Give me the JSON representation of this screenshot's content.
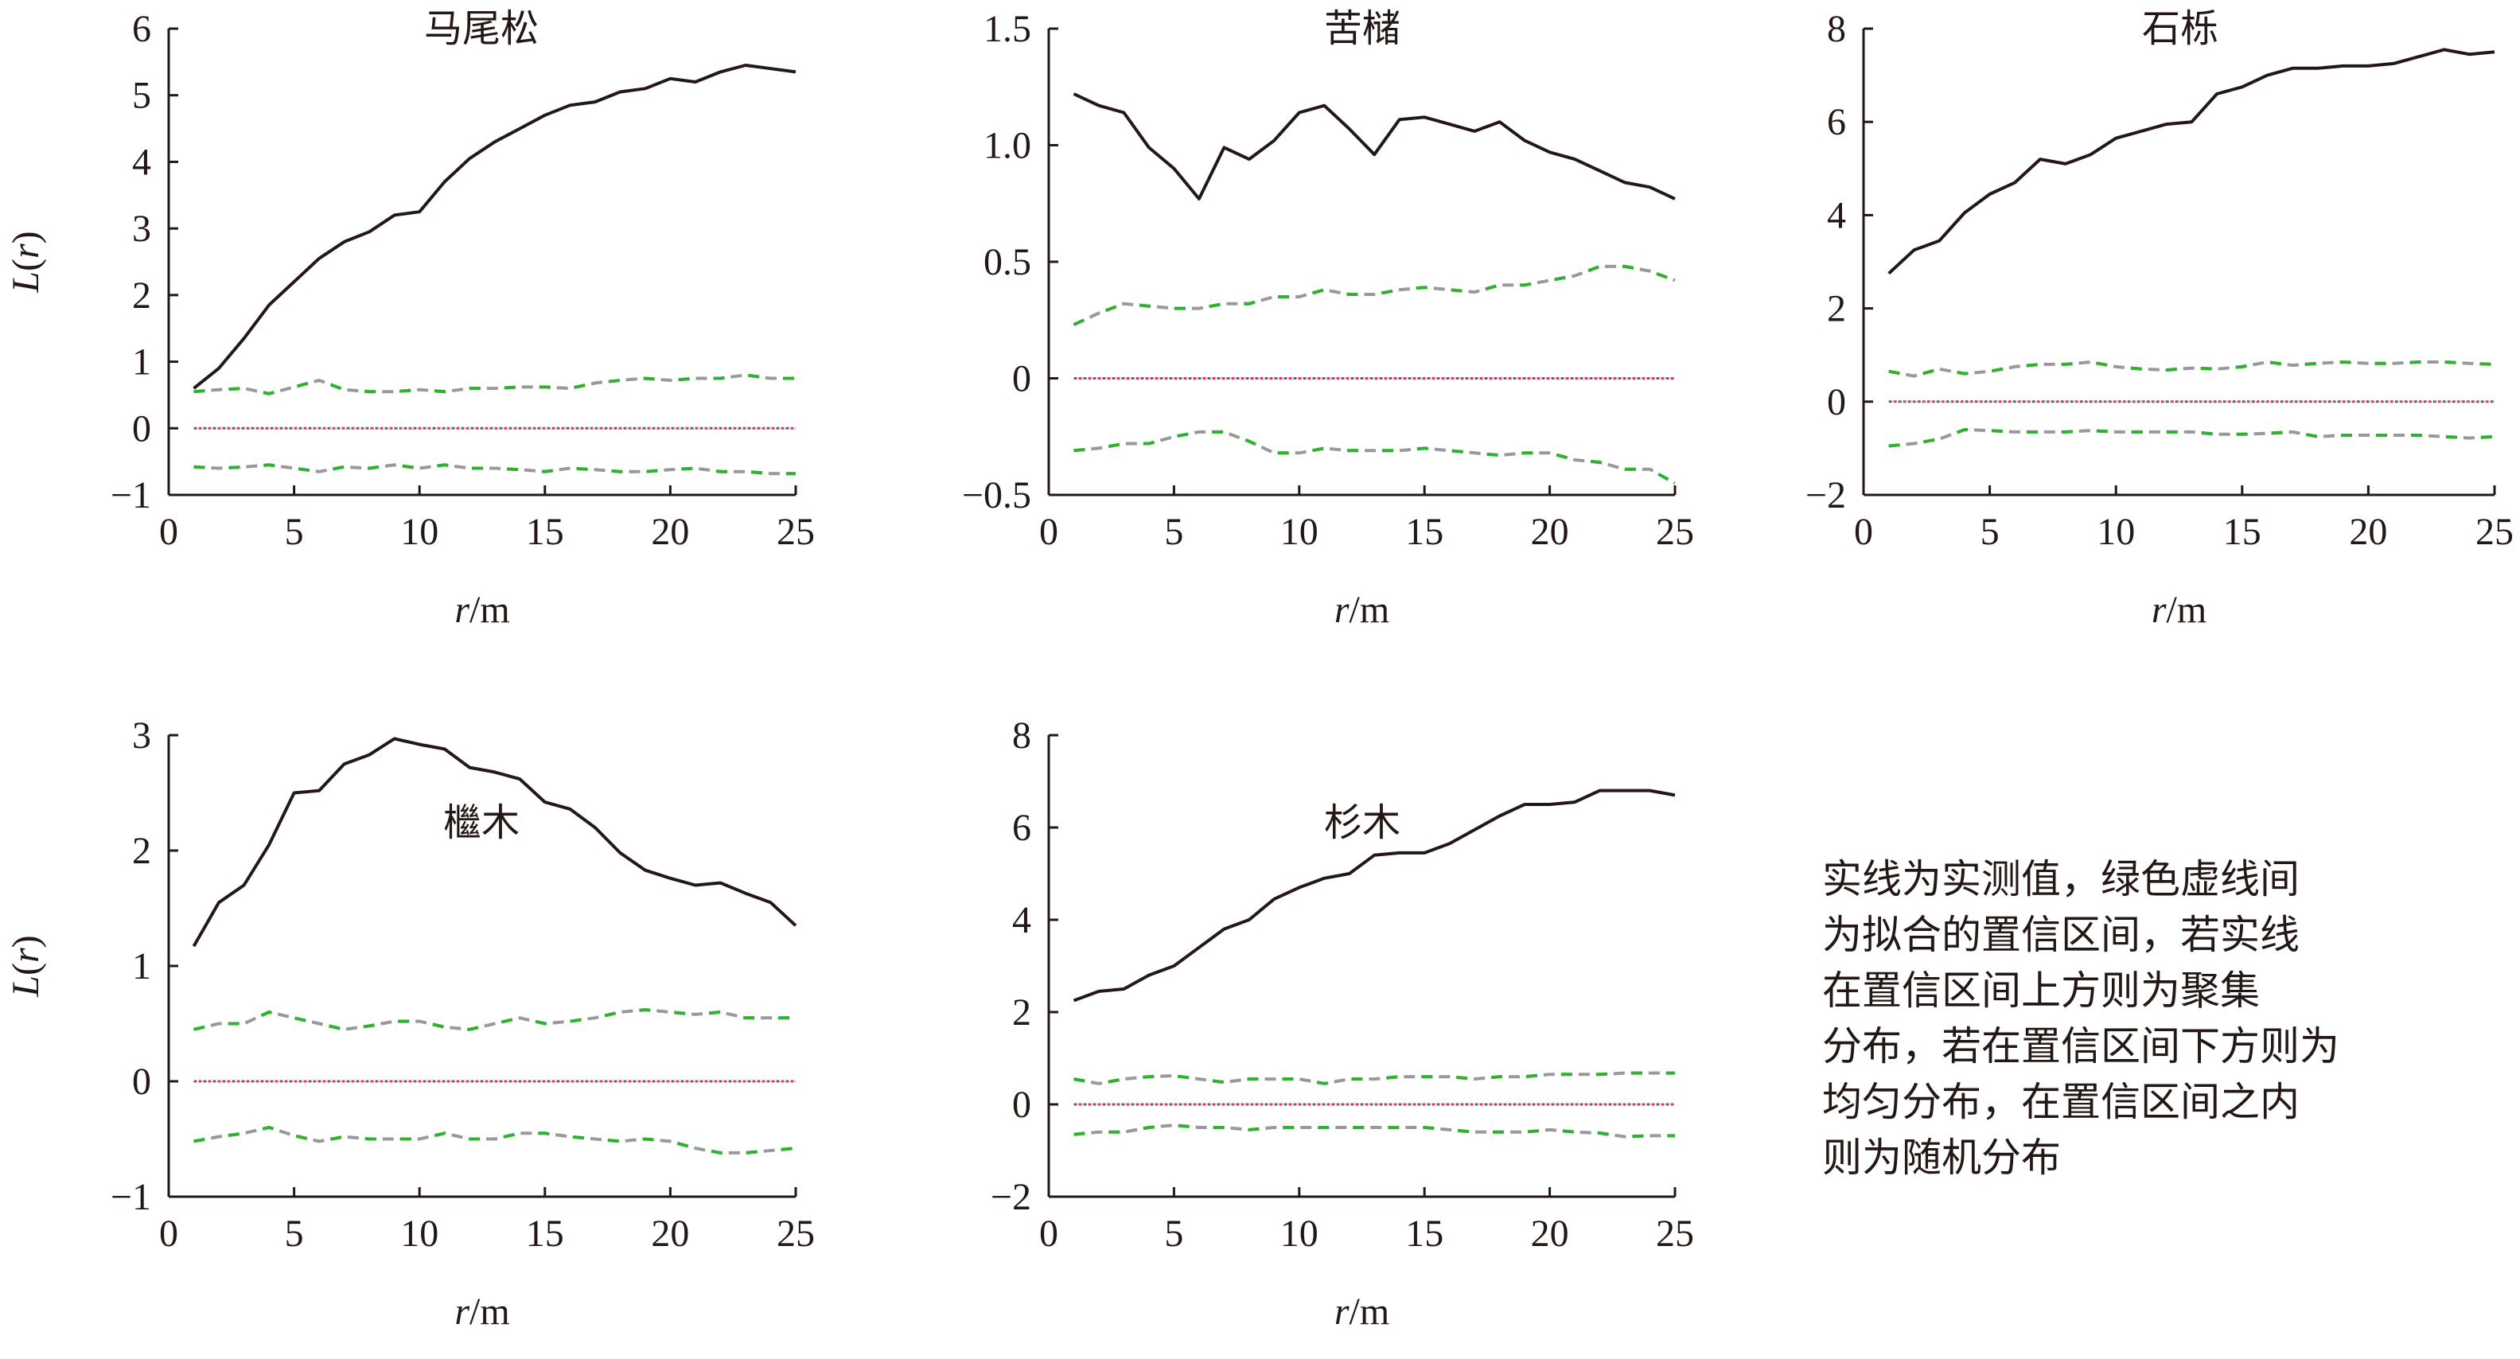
{
  "note_lines": [
    "实线为实测值，绿色虚线间",
    "为拟合的置信区间，若实线",
    "在置信区间上方则为聚集",
    "分布，若在置信区间下方则为",
    "均匀分布，在置信区间之内",
    "则为随机分布"
  ],
  "colors": {
    "observed": "#231815",
    "envelope_gray": "#999999",
    "envelope_green": "#2fb22f",
    "zero_gray": "#666666",
    "zero_pink": "#e8336f"
  },
  "chart_data": [
    {
      "type": "line",
      "title": "马尾松",
      "xlabel": "r/m",
      "ylabel": "L(r)",
      "xlim": [
        0,
        25
      ],
      "ylim": [
        -1,
        6
      ],
      "xticks": [
        "0",
        "5",
        "10",
        "15",
        "20",
        "25"
      ],
      "yticks": [
        "−1",
        "0",
        "1",
        "2",
        "3",
        "4",
        "5",
        "6"
      ],
      "x": [
        1,
        2,
        3,
        4,
        5,
        6,
        7,
        8,
        9,
        10,
        11,
        12,
        13,
        14,
        15,
        16,
        17,
        18,
        19,
        20,
        21,
        22,
        23,
        24,
        25
      ],
      "series": [
        {
          "values": [
            0.6,
            0.9,
            1.35,
            1.85,
            2.2,
            2.55,
            2.8,
            2.95,
            3.2,
            3.25,
            3.7,
            4.05,
            4.3,
            4.5,
            4.7,
            4.85,
            4.9,
            5.05,
            5.1,
            5.25,
            5.2,
            5.35,
            5.45,
            5.4,
            5.35
          ]
        },
        {
          "values": [
            0.55,
            0.58,
            0.6,
            0.52,
            0.62,
            0.72,
            0.58,
            0.55,
            0.55,
            0.58,
            0.55,
            0.6,
            0.6,
            0.62,
            0.62,
            0.6,
            0.68,
            0.72,
            0.75,
            0.72,
            0.75,
            0.75,
            0.8,
            0.75,
            0.75
          ]
        },
        {
          "values": [
            -0.58,
            -0.6,
            -0.58,
            -0.55,
            -0.6,
            -0.65,
            -0.58,
            -0.6,
            -0.55,
            -0.6,
            -0.55,
            -0.6,
            -0.6,
            -0.62,
            -0.65,
            -0.6,
            -0.62,
            -0.65,
            -0.65,
            -0.62,
            -0.6,
            -0.65,
            -0.65,
            -0.68,
            -0.68
          ]
        },
        {
          "values": [
            0,
            0,
            0,
            0,
            0,
            0,
            0,
            0,
            0,
            0,
            0,
            0,
            0,
            0,
            0,
            0,
            0,
            0,
            0,
            0,
            0,
            0,
            0,
            0,
            0
          ]
        }
      ]
    },
    {
      "type": "line",
      "title": "苦槠",
      "xlabel": "r/m",
      "ylabel": "",
      "xlim": [
        0,
        25
      ],
      "ylim": [
        -0.5,
        1.5
      ],
      "xticks": [
        "0",
        "5",
        "10",
        "15",
        "20",
        "25"
      ],
      "yticks": [
        "−0.5",
        "0",
        "0.5",
        "1.0",
        "1.5"
      ],
      "x": [
        1,
        2,
        3,
        4,
        5,
        6,
        7,
        8,
        9,
        10,
        11,
        12,
        13,
        14,
        15,
        16,
        17,
        18,
        19,
        20,
        21,
        22,
        23,
        24,
        25
      ],
      "series": [
        {
          "values": [
            1.22,
            1.17,
            1.14,
            0.99,
            0.9,
            0.77,
            0.99,
            0.94,
            1.02,
            1.14,
            1.17,
            1.07,
            0.96,
            1.11,
            1.12,
            1.09,
            1.06,
            1.1,
            1.02,
            0.97,
            0.94,
            0.89,
            0.84,
            0.82,
            0.77
          ]
        },
        {
          "values": [
            0.23,
            0.28,
            0.32,
            0.31,
            0.3,
            0.3,
            0.32,
            0.32,
            0.35,
            0.35,
            0.38,
            0.36,
            0.36,
            0.38,
            0.39,
            0.38,
            0.37,
            0.4,
            0.4,
            0.42,
            0.44,
            0.48,
            0.48,
            0.46,
            0.42
          ]
        },
        {
          "values": [
            -0.31,
            -0.3,
            -0.28,
            -0.28,
            -0.25,
            -0.23,
            -0.23,
            -0.27,
            -0.32,
            -0.32,
            -0.3,
            -0.31,
            -0.31,
            -0.31,
            -0.3,
            -0.31,
            -0.32,
            -0.33,
            -0.32,
            -0.32,
            -0.35,
            -0.36,
            -0.39,
            -0.39,
            -0.45
          ]
        },
        {
          "values": [
            0,
            0,
            0,
            0,
            0,
            0,
            0,
            0,
            0,
            0,
            0,
            0,
            0,
            0,
            0,
            0,
            0,
            0,
            0,
            0,
            0,
            0,
            0,
            0,
            0
          ]
        }
      ]
    },
    {
      "type": "line",
      "title": "石栎",
      "xlabel": "r/m",
      "ylabel": "",
      "xlim": [
        0,
        25
      ],
      "ylim": [
        -2,
        8
      ],
      "xticks": [
        "0",
        "5",
        "10",
        "15",
        "20",
        "25"
      ],
      "yticks": [
        "−2",
        "0",
        "2",
        "4",
        "6",
        "8"
      ],
      "x": [
        1,
        2,
        3,
        4,
        5,
        6,
        7,
        8,
        9,
        10,
        11,
        12,
        13,
        14,
        15,
        16,
        17,
        18,
        19,
        20,
        21,
        22,
        23,
        24,
        25
      ],
      "series": [
        {
          "values": [
            2.75,
            3.25,
            3.45,
            4.05,
            4.45,
            4.7,
            5.2,
            5.1,
            5.3,
            5.65,
            5.8,
            5.95,
            6.0,
            6.6,
            6.75,
            7.0,
            7.15,
            7.15,
            7.2,
            7.2,
            7.25,
            7.4,
            7.55,
            7.45,
            7.5
          ]
        },
        {
          "values": [
            0.65,
            0.55,
            0.7,
            0.6,
            0.65,
            0.75,
            0.8,
            0.8,
            0.85,
            0.75,
            0.7,
            0.68,
            0.72,
            0.7,
            0.75,
            0.85,
            0.78,
            0.82,
            0.85,
            0.82,
            0.82,
            0.85,
            0.85,
            0.82,
            0.8
          ]
        },
        {
          "values": [
            -0.95,
            -0.9,
            -0.8,
            -0.6,
            -0.62,
            -0.65,
            -0.65,
            -0.65,
            -0.62,
            -0.65,
            -0.65,
            -0.65,
            -0.65,
            -0.7,
            -0.7,
            -0.68,
            -0.65,
            -0.75,
            -0.72,
            -0.72,
            -0.72,
            -0.72,
            -0.75,
            -0.78,
            -0.75
          ]
        },
        {
          "values": [
            0,
            0,
            0,
            0,
            0,
            0,
            0,
            0,
            0,
            0,
            0,
            0,
            0,
            0,
            0,
            0,
            0,
            0,
            0,
            0,
            0,
            0,
            0,
            0,
            0
          ]
        }
      ]
    },
    {
      "type": "line",
      "title": "檵木",
      "xlabel": "r/m",
      "ylabel": "L(r)",
      "xlim": [
        0,
        25
      ],
      "ylim": [
        -1,
        3
      ],
      "xticks": [
        "0",
        "5",
        "10",
        "15",
        "20",
        "25"
      ],
      "yticks": [
        "−1",
        "0",
        "1",
        "2",
        "3"
      ],
      "x": [
        1,
        2,
        3,
        4,
        5,
        6,
        7,
        8,
        9,
        10,
        11,
        12,
        13,
        14,
        15,
        16,
        17,
        18,
        19,
        20,
        21,
        22,
        23,
        24,
        25
      ],
      "series": [
        {
          "values": [
            1.17,
            1.55,
            1.7,
            2.05,
            2.5,
            2.52,
            2.75,
            2.83,
            2.97,
            2.92,
            2.88,
            2.72,
            2.68,
            2.62,
            2.42,
            2.36,
            2.2,
            1.98,
            1.83,
            1.76,
            1.7,
            1.72,
            1.63,
            1.55,
            1.35
          ]
        },
        {
          "values": [
            0.45,
            0.5,
            0.5,
            0.6,
            0.55,
            0.5,
            0.45,
            0.48,
            0.52,
            0.52,
            0.47,
            0.45,
            0.5,
            0.55,
            0.5,
            0.52,
            0.55,
            0.6,
            0.62,
            0.6,
            0.58,
            0.6,
            0.55,
            0.55,
            0.55
          ]
        },
        {
          "values": [
            -0.52,
            -0.48,
            -0.45,
            -0.4,
            -0.47,
            -0.52,
            -0.48,
            -0.5,
            -0.5,
            -0.5,
            -0.45,
            -0.5,
            -0.5,
            -0.45,
            -0.45,
            -0.48,
            -0.5,
            -0.52,
            -0.5,
            -0.52,
            -0.58,
            -0.62,
            -0.62,
            -0.6,
            -0.58
          ]
        },
        {
          "values": [
            0,
            0,
            0,
            0,
            0,
            0,
            0,
            0,
            0,
            0,
            0,
            0,
            0,
            0,
            0,
            0,
            0,
            0,
            0,
            0,
            0,
            0,
            0,
            0,
            0
          ]
        }
      ]
    },
    {
      "type": "line",
      "title": "杉木",
      "xlabel": "r/m",
      "ylabel": "",
      "xlim": [
        0,
        25
      ],
      "ylim": [
        -2,
        8
      ],
      "xticks": [
        "0",
        "5",
        "10",
        "15",
        "20",
        "25"
      ],
      "yticks": [
        "−2",
        "0",
        "2",
        "4",
        "6",
        "8"
      ],
      "x": [
        1,
        2,
        3,
        4,
        5,
        6,
        7,
        8,
        9,
        10,
        11,
        12,
        13,
        14,
        15,
        16,
        17,
        18,
        19,
        20,
        21,
        22,
        23,
        24,
        25
      ],
      "series": [
        {
          "values": [
            2.25,
            2.45,
            2.5,
            2.8,
            3.0,
            3.4,
            3.8,
            4.0,
            4.45,
            4.7,
            4.9,
            5.0,
            5.4,
            5.45,
            5.45,
            5.65,
            5.95,
            6.25,
            6.5,
            6.5,
            6.55,
            6.8,
            6.8,
            6.8,
            6.7
          ]
        },
        {
          "values": [
            0.55,
            0.45,
            0.55,
            0.6,
            0.62,
            0.55,
            0.48,
            0.55,
            0.55,
            0.55,
            0.45,
            0.55,
            0.55,
            0.6,
            0.6,
            0.6,
            0.55,
            0.6,
            0.6,
            0.65,
            0.65,
            0.65,
            0.68,
            0.68,
            0.68
          ]
        },
        {
          "values": [
            -0.65,
            -0.6,
            -0.6,
            -0.5,
            -0.45,
            -0.5,
            -0.5,
            -0.55,
            -0.5,
            -0.5,
            -0.5,
            -0.5,
            -0.5,
            -0.5,
            -0.5,
            -0.55,
            -0.6,
            -0.6,
            -0.6,
            -0.55,
            -0.6,
            -0.62,
            -0.7,
            -0.68,
            -0.68
          ]
        },
        {
          "values": [
            0,
            0,
            0,
            0,
            0,
            0,
            0,
            0,
            0,
            0,
            0,
            0,
            0,
            0,
            0,
            0,
            0,
            0,
            0,
            0,
            0,
            0,
            0,
            0,
            0
          ]
        }
      ]
    }
  ]
}
